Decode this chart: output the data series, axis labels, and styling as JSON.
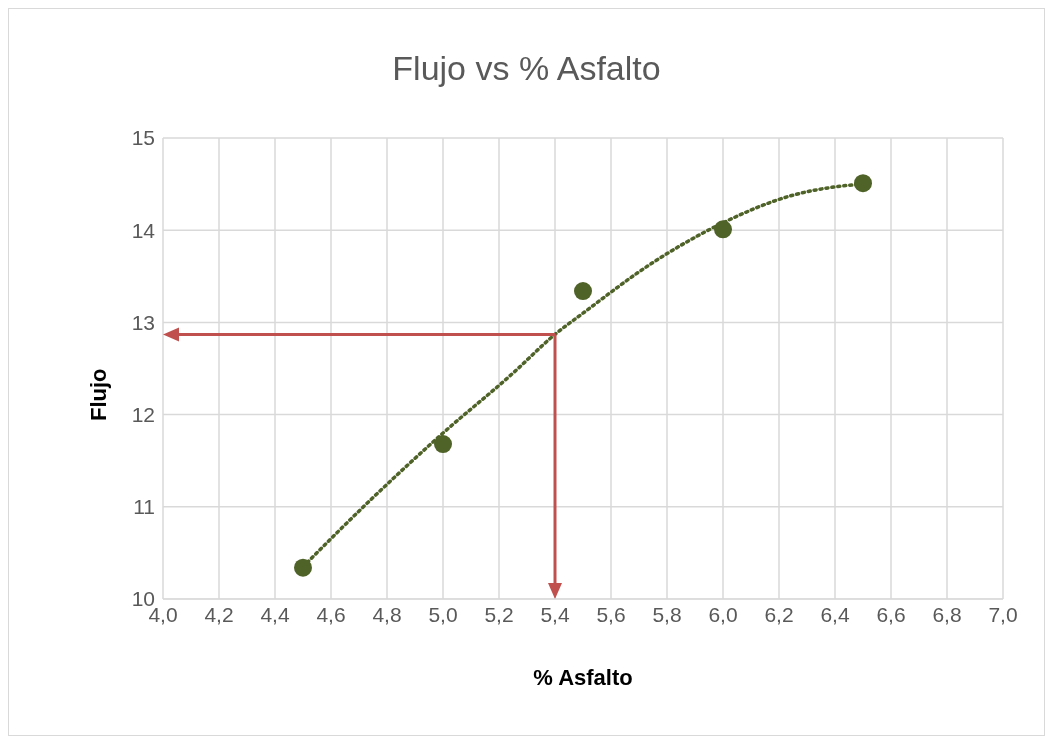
{
  "chart_data": {
    "type": "scatter",
    "title": "Flujo vs % Asfalto",
    "xlabel": "% Asfalto",
    "ylabel": "Flujo",
    "x": [
      4.5,
      5.0,
      5.5,
      6.0,
      6.5
    ],
    "series": [
      {
        "color": "#4f6228",
        "values": [
          10.34,
          11.68,
          13.34,
          14.01,
          14.51
        ],
        "marker": "circle"
      },
      {
        "type": "line",
        "color": "#4f6228",
        "line_style": "dotted",
        "x": [
          4.5,
          4.75,
          5.0,
          5.25,
          5.4,
          5.5,
          5.75,
          6.0,
          6.25,
          6.4,
          6.5
        ],
        "values": [
          10.35,
          11.1,
          11.8,
          12.45,
          12.87,
          13.1,
          13.65,
          14.08,
          14.38,
          14.47,
          14.5
        ]
      }
    ],
    "xlim": [
      4.0,
      7.0
    ],
    "xticks": [
      {
        "value": 4.0,
        "label": "4,0"
      },
      {
        "value": 4.2,
        "label": "4,2"
      },
      {
        "value": 4.4,
        "label": "4,4"
      },
      {
        "value": 4.6,
        "label": "4,6"
      },
      {
        "value": 4.8,
        "label": "4,8"
      },
      {
        "value": 5.0,
        "label": "5,0"
      },
      {
        "value": 5.2,
        "label": "5,2"
      },
      {
        "value": 5.4,
        "label": "5,4"
      },
      {
        "value": 5.6,
        "label": "5,6"
      },
      {
        "value": 5.8,
        "label": "5,8"
      },
      {
        "value": 6.0,
        "label": "6,0"
      },
      {
        "value": 6.2,
        "label": "6,2"
      },
      {
        "value": 6.4,
        "label": "6,4"
      },
      {
        "value": 6.6,
        "label": "6,6"
      },
      {
        "value": 6.8,
        "label": "6,8"
      },
      {
        "value": 7.0,
        "label": "7,0"
      }
    ],
    "ylim": [
      10,
      15
    ],
    "yticks": [
      10,
      11,
      12,
      13,
      14,
      15
    ],
    "grid": true,
    "legend": false,
    "ref_lines": [
      {
        "axis": "x",
        "value": 5.4,
        "color": "#c0504d"
      },
      {
        "axis": "y",
        "value": 12.87,
        "color": "#c0504d"
      }
    ]
  }
}
